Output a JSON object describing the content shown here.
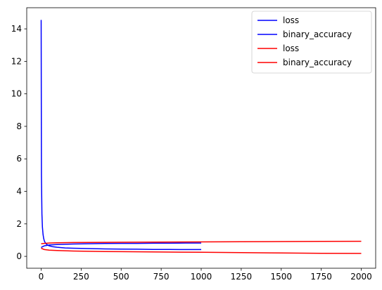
{
  "chart_data": {
    "type": "line",
    "title": "",
    "xlabel": "",
    "ylabel": "",
    "xlim": [
      -90,
      2090
    ],
    "ylim": [
      -0.73,
      15.3
    ],
    "xticks": [
      0,
      250,
      500,
      750,
      1000,
      1250,
      1500,
      1750,
      2000
    ],
    "yticks": [
      0,
      2,
      4,
      6,
      8,
      10,
      12,
      14
    ],
    "grid": false,
    "legend_position": "top-right",
    "series": [
      {
        "name": "loss",
        "color": "#0000ff",
        "x": [
          0,
          2,
          5,
          8,
          12,
          16,
          20,
          25,
          30,
          40,
          50,
          70,
          100,
          150,
          200,
          300,
          400,
          500,
          600,
          700,
          800,
          900,
          1000
        ],
        "y": [
          14.55,
          5.0,
          2.6,
          1.8,
          1.35,
          1.1,
          0.95,
          0.85,
          0.78,
          0.7,
          0.65,
          0.6,
          0.56,
          0.52,
          0.5,
          0.48,
          0.46,
          0.45,
          0.44,
          0.43,
          0.43,
          0.42,
          0.42
        ]
      },
      {
        "name": "binary_accuracy",
        "color": "#0000ff",
        "x": [
          0,
          10,
          20,
          50,
          100,
          200,
          300,
          400,
          500,
          600,
          700,
          800,
          900,
          1000
        ],
        "y": [
          0.55,
          0.6,
          0.65,
          0.7,
          0.73,
          0.76,
          0.78,
          0.79,
          0.8,
          0.8,
          0.81,
          0.81,
          0.82,
          0.82
        ]
      },
      {
        "name": "loss",
        "color": "#ff0000",
        "x": [
          0,
          20,
          50,
          100,
          200,
          300,
          400,
          500,
          750,
          1000,
          1250,
          1500,
          1750,
          2000
        ],
        "y": [
          0.5,
          0.42,
          0.38,
          0.36,
          0.33,
          0.31,
          0.3,
          0.29,
          0.27,
          0.25,
          0.23,
          0.21,
          0.19,
          0.18
        ]
      },
      {
        "name": "binary_accuracy",
        "color": "#ff0000",
        "x": [
          0,
          20,
          50,
          100,
          200,
          300,
          500,
          750,
          1000,
          1250,
          1500,
          1750,
          2000
        ],
        "y": [
          0.78,
          0.8,
          0.82,
          0.84,
          0.85,
          0.86,
          0.87,
          0.88,
          0.89,
          0.9,
          0.91,
          0.92,
          0.93
        ]
      }
    ]
  }
}
